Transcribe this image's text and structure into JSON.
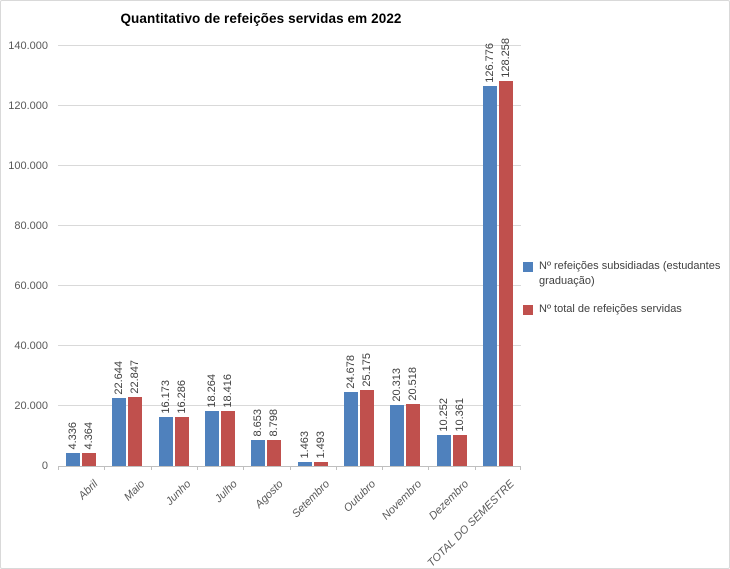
{
  "chart_data": {
    "type": "bar",
    "title": "Quantitativo de refeições servidas em 2022",
    "categories": [
      "Abril",
      "Maio",
      "Junho",
      "Julho",
      "Agosto",
      "Setembro",
      "Outubro",
      "Novembro",
      "Dezembro",
      "TOTAL DO SEMESTRE"
    ],
    "series": [
      {
        "name": "Nº refeições subsidiadas (estudantes graduação)",
        "color": "#4F81BD",
        "values": [
          4336,
          22644,
          16173,
          18264,
          8653,
          1463,
          24678,
          20313,
          10252,
          126776
        ]
      },
      {
        "name": "Nº total de refeições servidas",
        "color": "#C0504D",
        "values": [
          4364,
          22847,
          16286,
          18416,
          8798,
          1493,
          25175,
          20518,
          10361,
          128258
        ]
      }
    ],
    "data_labels": [
      [
        "4.336",
        "22.644",
        "16.173",
        "18.264",
        "8.653",
        "1.463",
        "24.678",
        "20.313",
        "10.252",
        "126.776"
      ],
      [
        "4.364",
        "22.847",
        "16.286",
        "18.416",
        "8.798",
        "1.493",
        "25.175",
        "20.518",
        "10.361",
        "128.258"
      ]
    ],
    "ylim": [
      0,
      140000
    ],
    "ytick_step": 20000,
    "ytick_labels": [
      "0",
      "20.000",
      "40.000",
      "60.000",
      "80.000",
      "100.000",
      "120.000",
      "140.000"
    ],
    "grid": true,
    "legend_position": "right",
    "colors": {
      "gridline": "#D9D9D9",
      "axis_line": "#BFBFBF",
      "axis_text": "#595959",
      "label_text": "#404040",
      "title_text": "#000000"
    }
  }
}
